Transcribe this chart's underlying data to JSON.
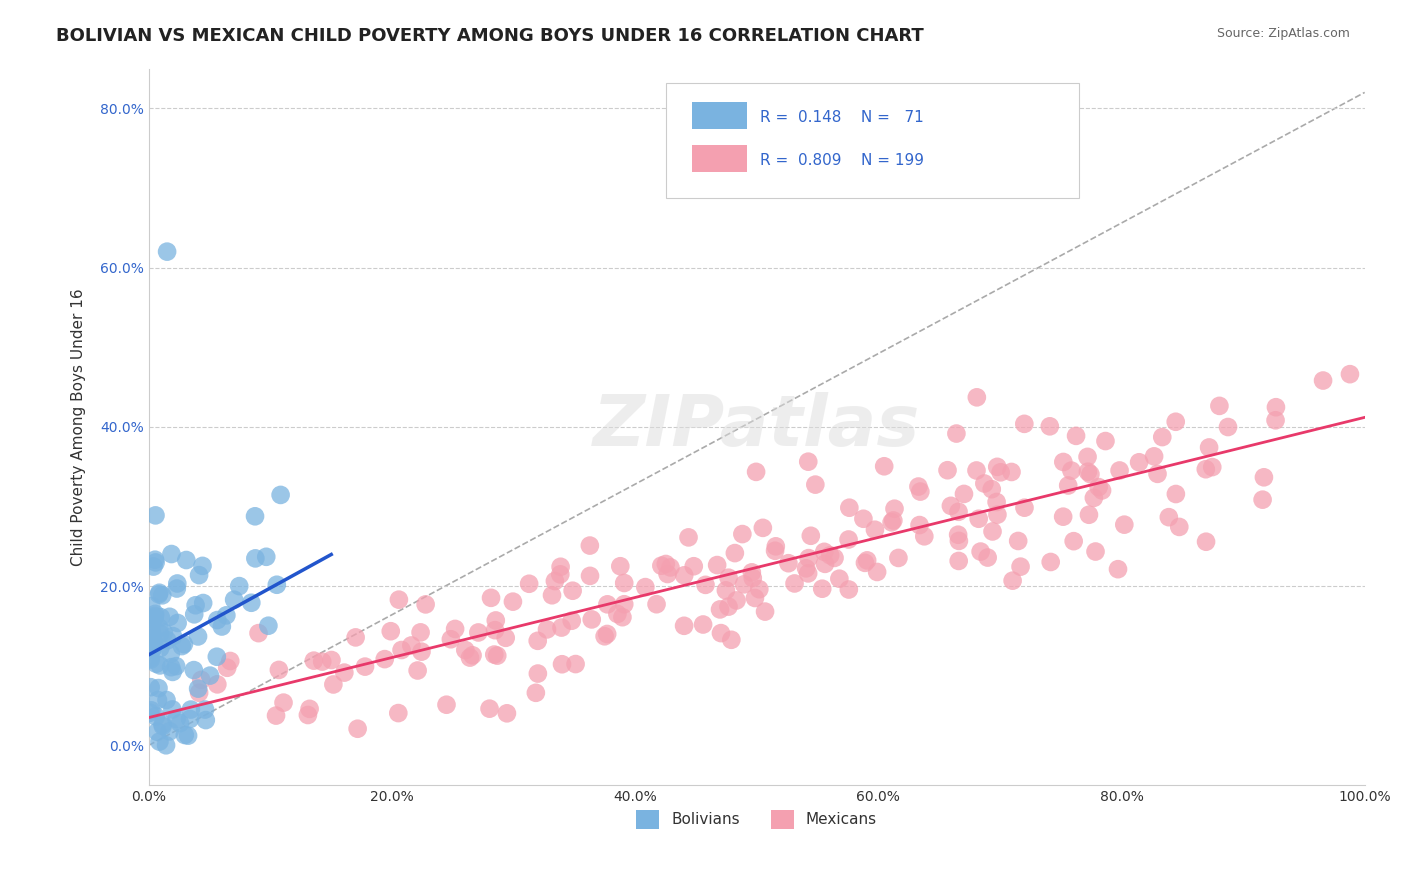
{
  "title": "BOLIVIAN VS MEXICAN CHILD POVERTY AMONG BOYS UNDER 16 CORRELATION CHART",
  "source": "Source: ZipAtlas.com",
  "xlabel": "",
  "ylabel": "Child Poverty Among Boys Under 16",
  "xlim": [
    0,
    1.0
  ],
  "ylim": [
    -0.05,
    0.85
  ],
  "xticks": [
    0.0,
    0.2,
    0.4,
    0.6,
    0.8,
    1.0
  ],
  "xtick_labels": [
    "0.0%",
    "20.0%",
    "40.0%",
    "60.0%",
    "80.0%",
    "100.0%"
  ],
  "ytick_positions": [
    0.0,
    0.2,
    0.4,
    0.6,
    0.8
  ],
  "ytick_labels": [
    "0.0%",
    "20.0%",
    "40.0%",
    "60.0%",
    "80.0%"
  ],
  "hlines": [
    0.2,
    0.4,
    0.6,
    0.8
  ],
  "bolivian_color": "#7ab3e0",
  "mexican_color": "#f4a0b0",
  "bolivian_line_color": "#2255cc",
  "mexican_line_color": "#e8396a",
  "legend_r1": "R =  0.148",
  "legend_n1": "N =   71",
  "legend_r2": "R =  0.809",
  "legend_n2": "N = 199",
  "legend_color": "#3366cc",
  "r_bolivian": 0.148,
  "n_bolivian": 71,
  "r_mexican": 0.809,
  "n_mexican": 199,
  "watermark": "ZIPatlas",
  "background_color": "#ffffff",
  "grid_color": "#cccccc",
  "title_fontsize": 13,
  "axis_label_fontsize": 11,
  "tick_fontsize": 10,
  "seed": 42
}
